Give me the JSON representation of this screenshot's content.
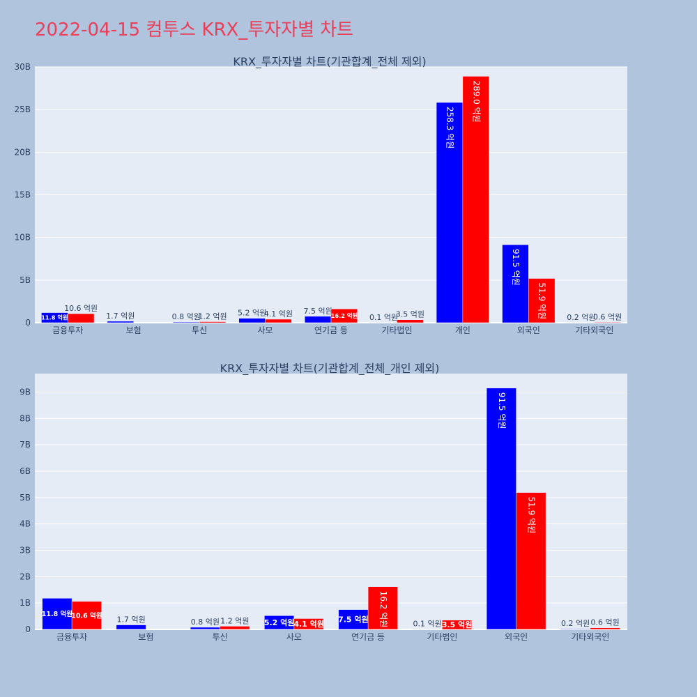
{
  "page": {
    "title": "2022-04-15 컴투스 KRX_투자자별 차트"
  },
  "colors": {
    "page_background": "#b0c4de",
    "plot_background": "#e5ecf6",
    "title_color": "#e8405a",
    "series_a": "#0000ff",
    "series_b": "#ff0000"
  },
  "chart_data": [
    {
      "type": "bar",
      "title": "KRX_투자자별 차트(기관합계_전체 제외)",
      "xlabel": "",
      "ylabel": "",
      "ylim": [
        0,
        30000000000
      ],
      "yticks": [
        0,
        5000000000,
        10000000000,
        15000000000,
        20000000000,
        25000000000,
        30000000000
      ],
      "ytick_labels": [
        "0",
        "5B",
        "10B",
        "15B",
        "20B",
        "25B",
        "30B"
      ],
      "grid": true,
      "legend": "none",
      "categories": [
        "금융투자",
        "보험",
        "투신",
        "사모",
        "연기금 등",
        "기타법인",
        "개인",
        "외국인",
        "기타외국인"
      ],
      "series": [
        {
          "color": "#0000ff",
          "values": [
            1180000000,
            170000000,
            80000000,
            520000000,
            750000000,
            10000000,
            25830000000,
            9150000000,
            20000000
          ],
          "labels": [
            "11.8 억원",
            "1.7 억원",
            "0.8 억원",
            "5.2 억원",
            "7.5 억원",
            "0.1 억원",
            "258.3 억원",
            "91.5 억원",
            "0.2 억원"
          ]
        },
        {
          "color": "#ff0000",
          "values": [
            1060000000,
            0,
            120000000,
            410000000,
            1620000000,
            350000000,
            28900000000,
            5190000000,
            60000000
          ],
          "labels": [
            "10.6 억원",
            "",
            "1.2 억원",
            "4.1 억원",
            "16.2 억원",
            "3.5 억원",
            "289.0 억원",
            "51.9 억원",
            "0.6 억원"
          ]
        }
      ]
    },
    {
      "type": "bar",
      "title": "KRX_투자자별 차트(기관합계_전체_개인 제외)",
      "xlabel": "",
      "ylabel": "",
      "ylim": [
        0,
        9700000000
      ],
      "yticks": [
        0,
        1000000000,
        2000000000,
        3000000000,
        4000000000,
        5000000000,
        6000000000,
        7000000000,
        8000000000,
        9000000000
      ],
      "ytick_labels": [
        "0",
        "1B",
        "2B",
        "3B",
        "4B",
        "5B",
        "6B",
        "7B",
        "8B",
        "9B"
      ],
      "grid": true,
      "legend": "none",
      "categories": [
        "금융투자",
        "보험",
        "투신",
        "사모",
        "연기금 등",
        "기타법인",
        "외국인",
        "기타외국인"
      ],
      "series": [
        {
          "color": "#0000ff",
          "values": [
            1180000000,
            170000000,
            80000000,
            520000000,
            750000000,
            10000000,
            9150000000,
            20000000
          ],
          "labels": [
            "11.8 억원",
            "1.7 억원",
            "0.8 억원",
            "5.2 억원",
            "7.5 억원",
            "0.1 억원",
            "91.5 억원",
            "0.2 억원"
          ]
        },
        {
          "color": "#ff0000",
          "values": [
            1060000000,
            0,
            120000000,
            410000000,
            1620000000,
            350000000,
            5190000000,
            60000000
          ],
          "labels": [
            "10.6 억원",
            "",
            "1.2 억원",
            "4.1 억원",
            "16.2 억원",
            "3.5 억원",
            "51.9 억원",
            "0.6 억원"
          ]
        }
      ]
    }
  ]
}
